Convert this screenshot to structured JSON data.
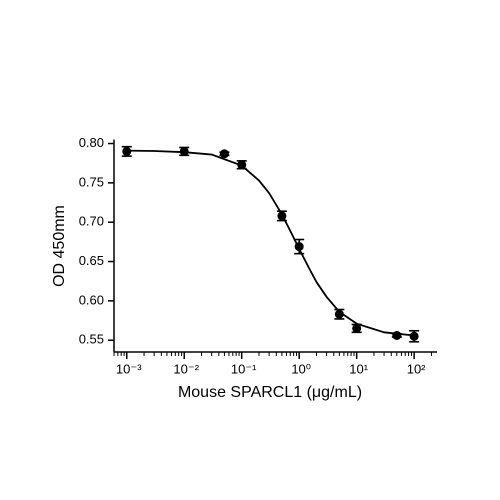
{
  "chart_data": {
    "type": "scatter",
    "x_label": "Mouse SPARCL1 (μg/mL)",
    "y_label": "OD 450mm",
    "x_scale": "log",
    "xlim": [
      0.0006,
      250
    ],
    "xticks": [
      {
        "value": 0.001,
        "label": "10⁻³"
      },
      {
        "value": 0.01,
        "label": "10⁻²"
      },
      {
        "value": 0.1,
        "label": "10⁻¹"
      },
      {
        "value": 1,
        "label": "10⁰"
      },
      {
        "value": 10,
        "label": "10¹"
      },
      {
        "value": 100,
        "label": "10²"
      }
    ],
    "ylim": [
      0.535,
      0.805
    ],
    "yticks": [
      0.55,
      {
        "value": 0.6,
        "label": "0.60"
      },
      0.65,
      {
        "value": 0.7,
        "label": "0.70"
      },
      0.75,
      {
        "value": 0.8,
        "label": "0.80"
      }
    ],
    "color": "#000000",
    "x": [
      0.001,
      0.01,
      0.05,
      0.1,
      0.5,
      1,
      5,
      10,
      50,
      100
    ],
    "values": [
      0.79,
      0.79,
      0.787,
      0.773,
      0.708,
      0.669,
      0.583,
      0.565,
      0.556,
      0.555
    ],
    "errors": [
      0.006,
      0.005,
      0.002,
      0.005,
      0.006,
      0.009,
      0.006,
      0.005,
      0.002,
      0.007
    ],
    "fit": {
      "x": [
        0.001,
        0.003,
        0.01,
        0.03,
        0.1,
        0.2,
        0.3,
        0.5,
        0.7,
        1,
        1.5,
        2,
        3,
        5,
        10,
        30,
        100
      ],
      "values": [
        0.791,
        0.7905,
        0.789,
        0.786,
        0.772,
        0.753,
        0.737,
        0.71,
        0.689,
        0.666,
        0.641,
        0.624,
        0.605,
        0.586,
        0.571,
        0.56,
        0.556
      ]
    }
  }
}
